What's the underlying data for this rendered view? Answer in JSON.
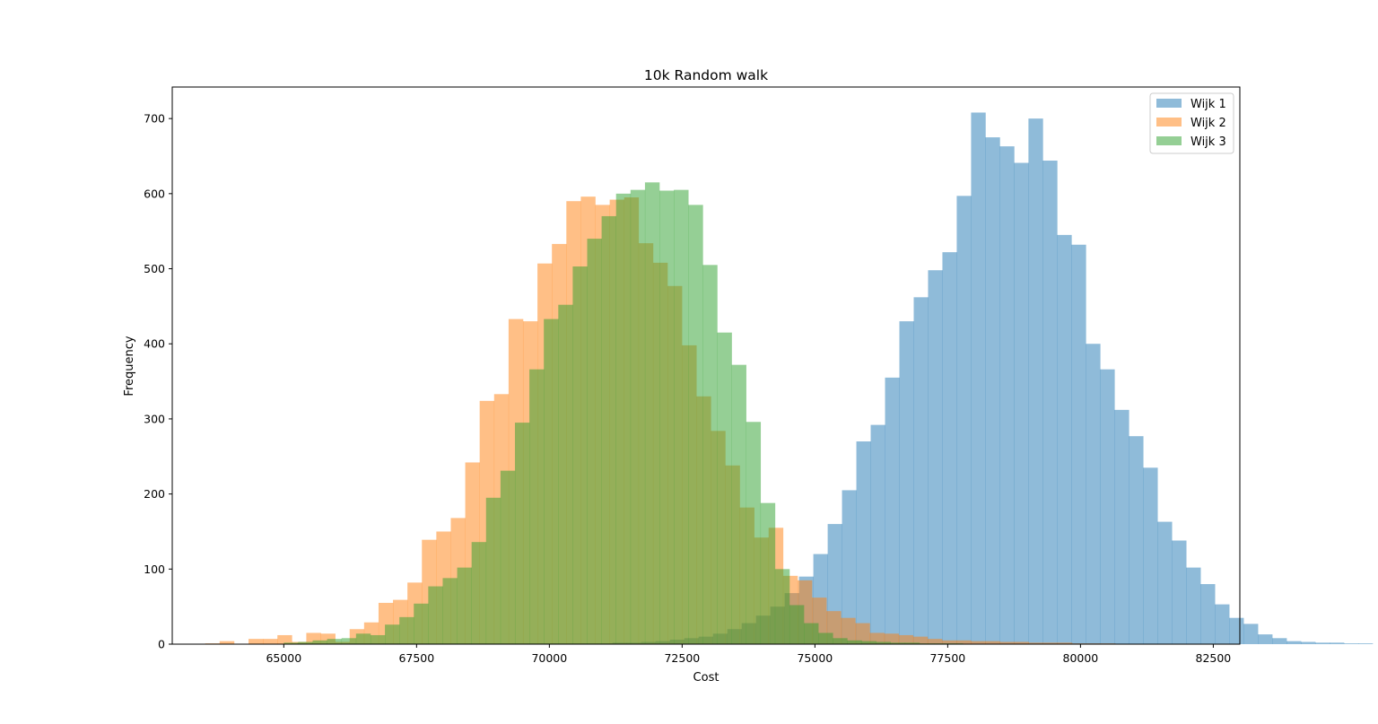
{
  "chart_data": {
    "type": "histogram",
    "title": "10k Random walk",
    "xlabel": "Cost",
    "ylabel": "Frequency",
    "xlim": [
      62900,
      83000
    ],
    "ylim": [
      0,
      742
    ],
    "xticks": [
      65000,
      67500,
      70000,
      72500,
      75000,
      77500,
      80000,
      82500
    ],
    "yticks": [
      0,
      100,
      200,
      300,
      400,
      500,
      600,
      700
    ],
    "grid": false,
    "legend_position": "top-right",
    "series": [
      {
        "name": "Wijk 1",
        "color": "#1f77b4",
        "bin_start": 65250,
        "bin_width": 270,
        "counts": [
          1,
          1,
          1,
          1,
          1,
          1,
          1,
          1,
          1,
          1,
          1,
          1,
          1,
          1,
          1,
          1,
          1,
          1,
          1,
          1,
          1,
          1,
          2,
          2,
          3,
          4,
          6,
          8,
          10,
          14,
          20,
          28,
          38,
          50,
          68,
          90,
          120,
          160,
          205,
          270,
          292,
          355,
          430,
          462,
          498,
          522,
          597,
          708,
          675,
          663,
          641,
          700,
          644,
          545,
          532,
          400,
          366,
          312,
          277,
          235,
          163,
          138,
          102,
          80,
          53,
          35,
          27,
          13,
          8,
          4,
          3,
          2,
          2,
          1,
          1
        ]
      },
      {
        "name": "Wijk 2",
        "color": "#ff7f0e",
        "bin_start": 63520,
        "bin_width": 272,
        "counts": [
          1,
          4,
          0,
          7,
          7,
          12,
          3,
          15,
          14,
          3,
          20,
          29,
          55,
          59,
          82,
          139,
          150,
          168,
          242,
          324,
          333,
          433,
          430,
          507,
          533,
          590,
          596,
          585,
          592,
          595,
          534,
          508,
          477,
          398,
          330,
          284,
          238,
          182,
          142,
          155,
          91,
          85,
          62,
          44,
          35,
          28,
          15,
          14,
          12,
          10,
          7,
          5,
          5,
          4,
          4,
          3,
          3,
          2,
          2,
          2,
          1,
          1,
          1
        ]
      },
      {
        "name": "Wijk 3",
        "color": "#2ca02c",
        "bin_start": 65000,
        "bin_width": 272,
        "counts": [
          2,
          3,
          5,
          7,
          8,
          14,
          12,
          26,
          36,
          54,
          77,
          88,
          102,
          136,
          195,
          231,
          295,
          366,
          433,
          452,
          503,
          540,
          570,
          600,
          605,
          615,
          604,
          605,
          585,
          505,
          415,
          372,
          296,
          188,
          100,
          52,
          28,
          15,
          8,
          5,
          4,
          3,
          2,
          2,
          1,
          1,
          1
        ]
      }
    ]
  }
}
